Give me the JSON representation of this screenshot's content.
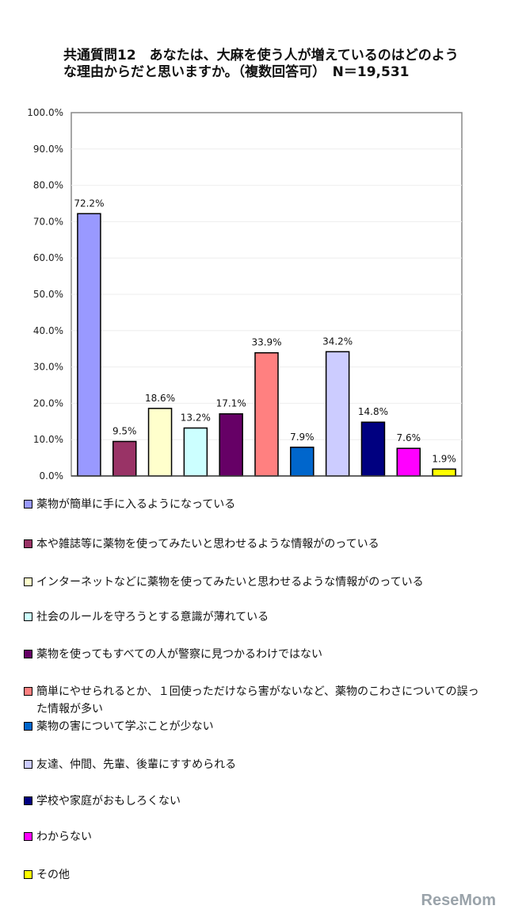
{
  "chart_data": {
    "type": "bar",
    "title": "共通質問12　あなたは、大麻を使う人が増えているのはどのような理由からだと思いますか。（複数回答可）　N＝19,531",
    "xlabel": "",
    "ylabel": "",
    "ylim": [
      0,
      100
    ],
    "yticks": [
      "0.0%",
      "10.0%",
      "20.0%",
      "30.0%",
      "40.0%",
      "50.0%",
      "60.0%",
      "70.0%",
      "80.0%",
      "90.0%",
      "100.0%"
    ],
    "legend_position": "bottom",
    "categories": [
      "薬物が簡単に手に入るようになっている",
      "本や雑誌等に薬物を使ってみたいと思わせるような情報がのっている",
      "インターネットなどに薬物を使ってみたいと思わせるような情報がのっている",
      "社会のルールを守ろうとする意識が薄れている",
      "薬物を使ってもすべての人が警察に見つかるわけではない",
      "簡単にやせられるとか、１回使っただけなら害がないなど、薬物のこわさについての誤った情報が多い",
      "薬物の害について学ぶことが少ない",
      "友達、仲間、先輩、後輩にすすめられる",
      "学校や家庭がおもしろくない",
      "わからない",
      "その他"
    ],
    "values": [
      72.2,
      9.5,
      18.6,
      13.2,
      17.1,
      33.9,
      7.9,
      34.2,
      14.8,
      7.6,
      1.9
    ],
    "value_labels": [
      "72.2%",
      "9.5%",
      "18.6%",
      "13.2%",
      "17.1%",
      "33.9%",
      "7.9%",
      "34.2%",
      "14.8%",
      "7.6%",
      "1.9%"
    ],
    "colors": [
      "#9999ff",
      "#993366",
      "#ffffcc",
      "#ccffff",
      "#660066",
      "#ff8080",
      "#0066cc",
      "#ccccff",
      "#000080",
      "#ff00ff",
      "#ffff00"
    ]
  },
  "header": {
    "title": "共通質問12　あなたは、大麻を使う人が増えているのはどのような理由からだと思いますか。（複数回答可）　N＝19,531"
  },
  "logo": "ReseMom"
}
